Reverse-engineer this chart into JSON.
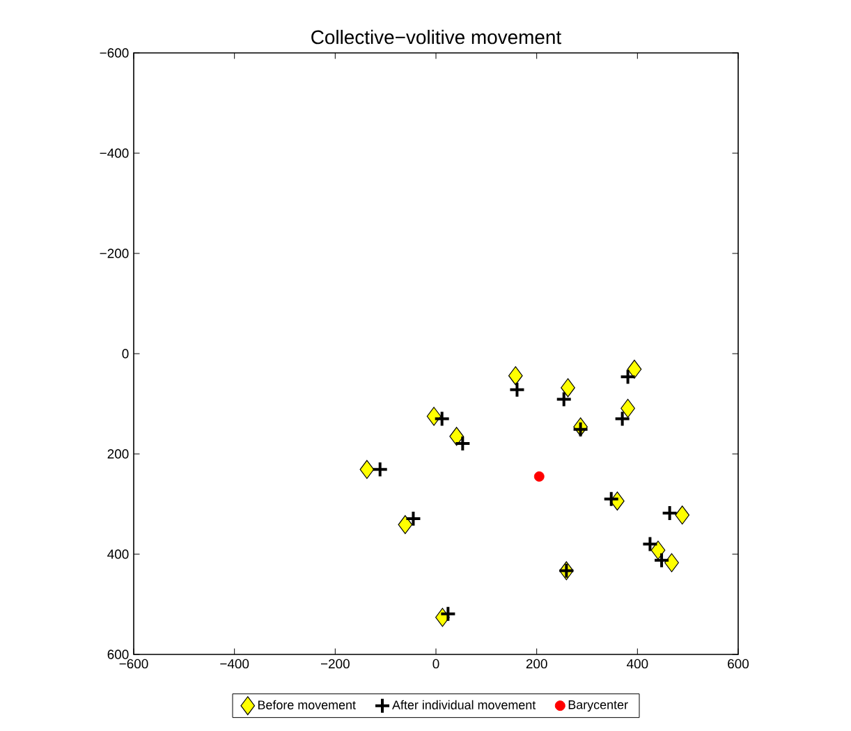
{
  "chart_data": {
    "type": "scatter",
    "title": "Collective−volitive movement",
    "xlim": [
      -600,
      600
    ],
    "ylim": [
      600,
      -600
    ],
    "xticks": [
      {
        "value": -600,
        "label": "−600"
      },
      {
        "value": -400,
        "label": "−400"
      },
      {
        "value": -200,
        "label": "−200"
      },
      0,
      200,
      400,
      600
    ],
    "yticks": [
      {
        "value": -600,
        "label": "−600"
      },
      {
        "value": -400,
        "label": "−400"
      },
      {
        "value": -200,
        "label": "−200"
      },
      0,
      200,
      400,
      600
    ],
    "legend": "bottom",
    "series": [
      {
        "name": "Before movement",
        "color": "#ffff00",
        "marker": "diamond",
        "x": [
          158,
          262,
          394,
          381,
          -4,
          287,
          41,
          -137,
          360,
          489,
          -61,
          441,
          468,
          259,
          13
        ],
        "values": [
          44,
          68,
          31,
          109,
          125,
          146,
          165,
          231,
          294,
          322,
          341,
          392,
          417,
          433,
          526
        ]
      },
      {
        "name": "After individual movement",
        "color": "#000000",
        "marker": "cross",
        "x": [
          161,
          254,
          381,
          370,
          12,
          287,
          53,
          -111,
          348,
          464,
          -45,
          425,
          448,
          259,
          24
        ],
        "values": [
          72,
          91,
          46,
          130,
          130,
          151,
          179,
          231,
          290,
          318,
          329,
          380,
          412,
          433,
          519
        ]
      },
      {
        "name": "Barycenter",
        "color": "#ff0000",
        "marker": "circle",
        "x": [
          205
        ],
        "values": [
          245
        ]
      }
    ]
  }
}
